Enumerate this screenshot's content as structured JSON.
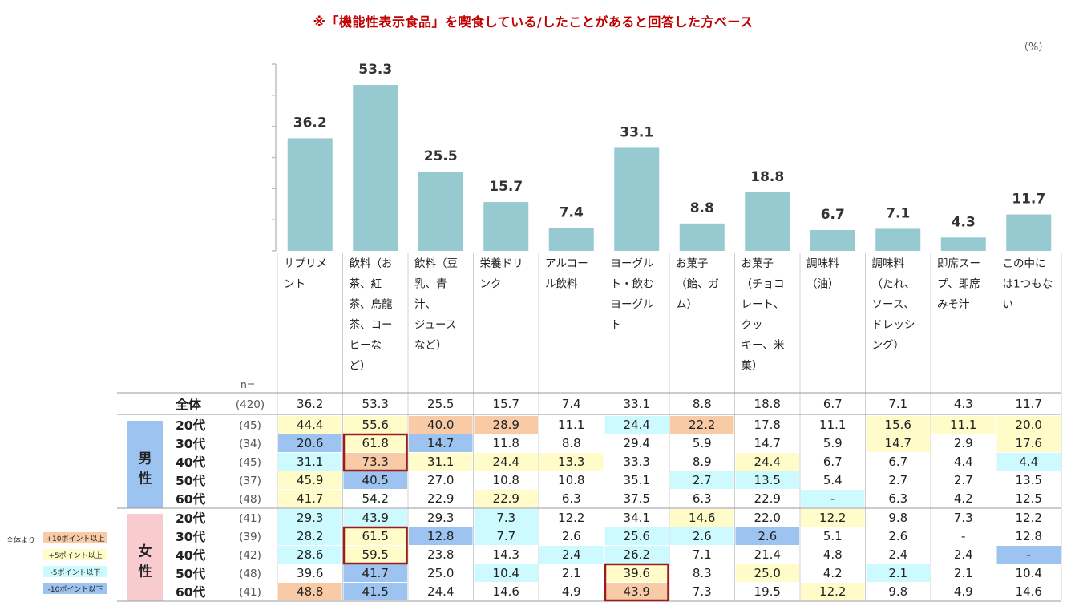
{
  "title": "※「機能性表示食品」を喫食している/したことがあると回答した方ベース",
  "unit": "（%）",
  "n_label": "n=",
  "legend": {
    "prefix": "全体より",
    "items": [
      {
        "label": "+10ポイント以上",
        "color": "#f8cba6"
      },
      {
        "label": "+5ポイント以上",
        "color": "#fffcc9"
      },
      {
        "label": "-5ポイント以下",
        "color": "#ccfaff"
      },
      {
        "label": "-10ポイント以下",
        "color": "#9dc3f0"
      }
    ]
  },
  "colors": {
    "bar": "#96cad0",
    "plus10": "#f8cba6",
    "plus5": "#fffcc9",
    "minus5": "#ccfaff",
    "minus10": "#9dc3f0",
    "male_label_bg": "#9dc3f0",
    "female_label_bg": "#f8cbcf",
    "highlight_border": "#9b1c1c"
  },
  "chart_data": {
    "type": "bar",
    "categories": [
      "サプリメント",
      "飲料（お茶、紅茶、烏龍茶、コーヒーなど）",
      "飲料（豆乳、青汁、ジュースなど）",
      "栄養ドリンク",
      "アルコール飲料",
      "ヨーグルト・飲むヨーグルト",
      "お菓子（飴、ガム）",
      "お菓子（チョコレート、クッキー、米菓）",
      "調味料（油）",
      "調味料（たれ、ソース、ドレッシング）",
      "即席スープ、即席みそ汁",
      "この中には1つもない"
    ],
    "category_lines": [
      [
        "サプリメ",
        "ント"
      ],
      [
        "飲料（お",
        "茶、紅",
        "茶、烏龍",
        "茶、コー",
        "ヒーな",
        "ど）"
      ],
      [
        "飲料（豆",
        "乳、青",
        "汁、",
        "ジュース",
        "など）"
      ],
      [
        "栄養ドリ",
        "ンク"
      ],
      [
        "アルコー",
        "ル飲料"
      ],
      [
        "ヨーグル",
        "ト・飲む",
        "ヨーグル",
        "ト"
      ],
      [
        "お菓子",
        "（飴、ガ",
        "ム）"
      ],
      [
        "お菓子",
        "（チョコ",
        "レート、",
        "クッ",
        "キー、米",
        "菓）"
      ],
      [
        "調味料",
        "（油）"
      ],
      [
        "調味料",
        "（たれ、",
        "ソース、",
        "ドレッシ",
        "ング）"
      ],
      [
        "即席スー",
        "プ、即席",
        "みそ汁"
      ],
      [
        "この中に",
        "は1つもな",
        "い"
      ]
    ],
    "values": [
      "36.2",
      "53.3",
      "25.5",
      "15.7",
      "7.4",
      "33.1",
      "8.8",
      "18.8",
      "6.7",
      "7.1",
      "4.3",
      "11.7"
    ],
    "ylim": [
      0,
      60
    ],
    "table": {
      "total": {
        "label": "全体",
        "n": "(420)",
        "values": [
          "36.2",
          "53.3",
          "25.5",
          "15.7",
          "7.4",
          "33.1",
          "8.8",
          "18.8",
          "6.7",
          "7.1",
          "4.3",
          "11.7"
        ]
      },
      "groups": [
        {
          "name": "男性",
          "label_chars": [
            "男",
            "性"
          ],
          "rows": [
            {
              "age": "20代",
              "n": "(45)",
              "values": [
                "44.4",
                "55.6",
                "40.0",
                "28.9",
                "11.1",
                "24.4",
                "22.2",
                "17.8",
                "11.1",
                "15.6",
                "11.1",
                "20.0"
              ]
            },
            {
              "age": "30代",
              "n": "(34)",
              "values": [
                "20.6",
                "61.8",
                "14.7",
                "11.8",
                "8.8",
                "29.4",
                "5.9",
                "14.7",
                "5.9",
                "14.7",
                "2.9",
                "17.6"
              ]
            },
            {
              "age": "40代",
              "n": "(45)",
              "values": [
                "31.1",
                "73.3",
                "31.1",
                "24.4",
                "13.3",
                "33.3",
                "8.9",
                "24.4",
                "6.7",
                "6.7",
                "4.4",
                "4.4"
              ]
            },
            {
              "age": "50代",
              "n": "(37)",
              "values": [
                "45.9",
                "40.5",
                "27.0",
                "10.8",
                "10.8",
                "35.1",
                "2.7",
                "13.5",
                "5.4",
                "2.7",
                "2.7",
                "13.5"
              ]
            },
            {
              "age": "60代",
              "n": "(48)",
              "values": [
                "41.7",
                "54.2",
                "22.9",
                "22.9",
                "6.3",
                "37.5",
                "6.3",
                "22.9",
                "-",
                "6.3",
                "4.2",
                "12.5"
              ]
            }
          ]
        },
        {
          "name": "女性",
          "label_chars": [
            "女",
            "性"
          ],
          "rows": [
            {
              "age": "20代",
              "n": "(41)",
              "values": [
                "29.3",
                "43.9",
                "29.3",
                "7.3",
                "12.2",
                "34.1",
                "14.6",
                "22.0",
                "12.2",
                "9.8",
                "7.3",
                "12.2"
              ]
            },
            {
              "age": "30代",
              "n": "(39)",
              "values": [
                "28.2",
                "61.5",
                "12.8",
                "7.7",
                "2.6",
                "25.6",
                "2.6",
                "2.6",
                "5.1",
                "2.6",
                "-",
                "12.8"
              ]
            },
            {
              "age": "40代",
              "n": "(42)",
              "values": [
                "28.6",
                "59.5",
                "23.8",
                "14.3",
                "2.4",
                "26.2",
                "7.1",
                "21.4",
                "4.8",
                "2.4",
                "2.4",
                "-"
              ]
            },
            {
              "age": "50代",
              "n": "(48)",
              "values": [
                "39.6",
                "41.7",
                "25.0",
                "10.4",
                "2.1",
                "39.6",
                "8.3",
                "25.0",
                "4.2",
                "2.1",
                "2.1",
                "10.4"
              ]
            },
            {
              "age": "60代",
              "n": "(41)",
              "values": [
                "48.8",
                "41.5",
                "24.4",
                "14.6",
                "4.9",
                "43.9",
                "7.3",
                "19.5",
                "12.2",
                "9.8",
                "4.9",
                "14.6"
              ]
            }
          ]
        }
      ],
      "cell_fill": {
        "0-0": [
          "plus5",
          "plus5",
          "plus10",
          "plus10",
          "",
          "minus5",
          "plus10",
          "",
          "",
          "plus5",
          "plus5",
          "plus5"
        ],
        "0-1": [
          "minus10",
          "plus5",
          "minus10",
          "",
          "",
          "",
          "",
          "",
          "",
          "plus5",
          "",
          "plus5"
        ],
        "0-2": [
          "minus5",
          "plus10",
          "plus5",
          "plus5",
          "plus5",
          "",
          "",
          "plus5",
          "",
          "",
          "",
          "minus5"
        ],
        "0-3": [
          "plus5",
          "minus10",
          "",
          "",
          "",
          "",
          "minus5",
          "minus5",
          "",
          "",
          "",
          ""
        ],
        "0-4": [
          "plus5",
          "",
          "",
          "plus5",
          "",
          "",
          "",
          "",
          "minus5",
          "",
          "",
          ""
        ],
        "1-0": [
          "minus5",
          "minus5",
          "",
          "minus5",
          "",
          "",
          "plus5",
          "",
          "plus5",
          "",
          "",
          ""
        ],
        "1-1": [
          "minus5",
          "plus5",
          "minus10",
          "minus5",
          "",
          "minus5",
          "minus5",
          "minus10",
          "",
          "",
          "",
          ""
        ],
        "1-2": [
          "minus5",
          "plus5",
          "",
          "",
          "minus5",
          "minus5",
          "",
          "",
          "",
          "",
          "",
          "minus10"
        ],
        "1-3": [
          "",
          "minus10",
          "",
          "minus5",
          "",
          "plus5",
          "",
          "plus5",
          "",
          "minus5",
          "",
          ""
        ],
        "1-4": [
          "plus10",
          "minus10",
          "",
          "",
          "",
          "plus10",
          "",
          "",
          "plus5",
          "",
          "",
          ""
        ]
      },
      "highlight_cells": [
        {
          "group": 0,
          "rows": [
            1,
            2
          ],
          "col": 1
        },
        {
          "group": 1,
          "rows": [
            1,
            2
          ],
          "col": 1
        },
        {
          "group": 1,
          "rows": [
            3,
            4
          ],
          "col": 5
        }
      ]
    }
  }
}
